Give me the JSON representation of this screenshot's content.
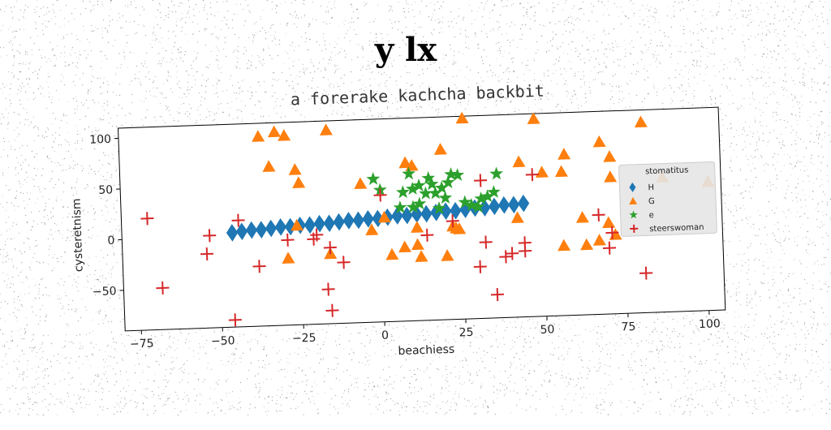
{
  "title": "y lx",
  "chart_data": {
    "type": "scatter",
    "subtitle": "a forerake kachcha backbit",
    "xlabel": "beachiess",
    "ylabel": "cysteretnism",
    "xlim": [
      -80,
      105
    ],
    "ylim": [
      -90,
      110
    ],
    "xticks": [
      -75,
      -50,
      -25,
      0,
      25,
      50,
      75,
      100
    ],
    "yticks": [
      -50,
      0,
      50,
      100
    ],
    "grid": false,
    "legend": {
      "title": "stomatitus",
      "placement": "right"
    },
    "series": [
      {
        "name": "H",
        "marker": "diamond",
        "color": "#1f77b4",
        "points": [
          [
            -46,
            3
          ],
          [
            -43,
            4
          ],
          [
            -40,
            5
          ],
          [
            -37,
            5
          ],
          [
            -34,
            6
          ],
          [
            -31,
            7
          ],
          [
            -28,
            7
          ],
          [
            -25,
            8
          ],
          [
            -22,
            8
          ],
          [
            -19,
            9
          ],
          [
            -16,
            9
          ],
          [
            -13,
            10
          ],
          [
            -10,
            11
          ],
          [
            -7,
            11
          ],
          [
            -4,
            12
          ],
          [
            -1,
            12
          ],
          [
            2,
            13
          ],
          [
            5,
            14
          ],
          [
            8,
            14
          ],
          [
            11,
            15
          ],
          [
            14,
            15
          ],
          [
            17,
            16
          ],
          [
            20,
            17
          ],
          [
            23,
            17
          ],
          [
            26,
            18
          ],
          [
            29,
            19
          ],
          [
            32,
            19
          ],
          [
            35,
            20
          ],
          [
            38,
            21
          ],
          [
            41,
            21
          ],
          [
            44,
            22
          ]
        ]
      },
      {
        "name": "G",
        "marker": "triangle",
        "color": "#ff7f0e",
        "points": [
          [
            -37,
            97
          ],
          [
            -32,
            101
          ],
          [
            -29,
            97
          ],
          [
            -16,
            101
          ],
          [
            26,
            108
          ],
          [
            48,
            105
          ],
          [
            81,
            98
          ],
          [
            -34,
            67
          ],
          [
            -26,
            63
          ],
          [
            -25,
            50
          ],
          [
            8,
            66
          ],
          [
            10,
            63
          ],
          [
            19,
            78
          ],
          [
            -6,
            47
          ],
          [
            43,
            63
          ],
          [
            50,
            52
          ],
          [
            56,
            52
          ],
          [
            57,
            69
          ],
          [
            68,
            80
          ],
          [
            71,
            65
          ],
          [
            71,
            45
          ],
          [
            87,
            43
          ],
          [
            101,
            37
          ],
          [
            -26,
            8
          ],
          [
            1,
            13
          ],
          [
            42,
            8
          ],
          [
            3,
            -24
          ],
          [
            -29,
            -24
          ],
          [
            -16,
            -21
          ],
          [
            -3,
            1
          ],
          [
            7,
            -17
          ],
          [
            11,
            -15
          ],
          [
            12,
            -27
          ],
          [
            20,
            -27
          ],
          [
            11,
            2
          ],
          [
            22,
            2
          ],
          [
            23,
            0
          ],
          [
            24,
            -1
          ],
          [
            56,
            -21
          ],
          [
            63,
            -21
          ],
          [
            67,
            -17
          ],
          [
            72,
            -12
          ],
          [
            62,
            6
          ],
          [
            70,
            0
          ]
        ]
      },
      {
        "name": "e",
        "marker": "star",
        "color": "#2ca02c",
        "points": [
          [
            -2,
            51
          ],
          [
            0,
            40
          ],
          [
            7,
            37
          ],
          [
            9,
            55
          ],
          [
            10,
            40
          ],
          [
            12,
            43
          ],
          [
            14,
            35
          ],
          [
            15,
            50
          ],
          [
            16,
            44
          ],
          [
            17,
            35
          ],
          [
            19,
            40
          ],
          [
            20,
            30
          ],
          [
            21,
            45
          ],
          [
            22,
            53
          ],
          [
            24,
            52
          ],
          [
            26,
            25
          ],
          [
            28,
            22
          ],
          [
            30,
            20
          ],
          [
            31,
            28
          ],
          [
            33,
            30
          ],
          [
            35,
            34
          ],
          [
            36,
            52
          ],
          [
            10,
            22
          ],
          [
            12,
            25
          ],
          [
            6,
            22
          ],
          [
            18,
            20
          ]
        ]
      },
      {
        "name": "steerswoman",
        "marker": "plus",
        "color": "#d62728",
        "points": [
          [
            -72,
            20
          ],
          [
            -68,
            -49
          ],
          [
            -54,
            -17
          ],
          [
            -53,
            1
          ],
          [
            -46,
            -83
          ],
          [
            -44,
            15
          ],
          [
            -38,
            -31
          ],
          [
            -29,
            -6
          ],
          [
            -21,
            -6
          ],
          [
            -20,
            -2
          ],
          [
            -17,
            -56
          ],
          [
            -16,
            -15
          ],
          [
            -16,
            -77
          ],
          [
            -12,
            -30
          ],
          [
            0,
            35
          ],
          [
            14,
            -6
          ],
          [
            22,
            7
          ],
          [
            30,
            -39
          ],
          [
            31,
            46
          ],
          [
            32,
            -15
          ],
          [
            35,
            -67
          ],
          [
            38,
            -30
          ],
          [
            40,
            -27
          ],
          [
            44,
            -17
          ],
          [
            44,
            -25
          ],
          [
            47,
            50
          ],
          [
            67,
            8
          ],
          [
            70,
            -25
          ],
          [
            71,
            -10
          ],
          [
            81,
            -51
          ]
        ]
      }
    ]
  }
}
